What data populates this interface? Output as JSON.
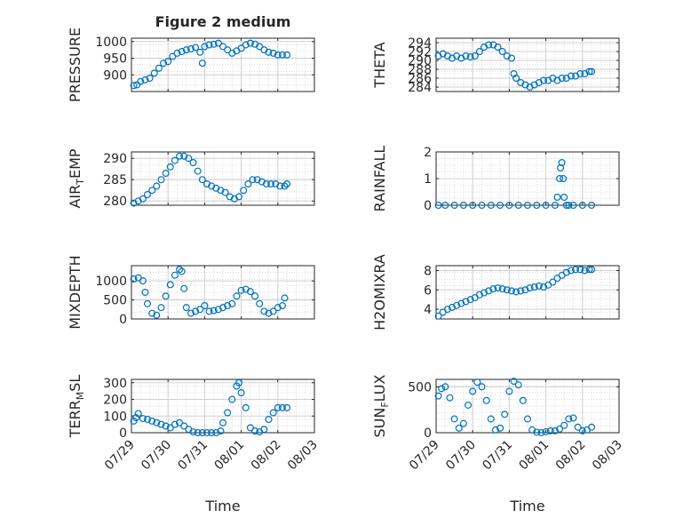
{
  "figure_title": "Figure 2 medium",
  "chart_data": [
    {
      "type": "scatter",
      "ylabel": "PRESSURE",
      "ylim": [
        850,
        1010
      ],
      "yticks": [
        900,
        950,
        1000
      ],
      "ytick_labels": [
        "900",
        "950",
        "1000"
      ],
      "x_ticks": [
        "07/29",
        "07/30",
        "07/31",
        "08/01",
        "08/02",
        "08/03"
      ],
      "xlim": [
        0,
        4
      ],
      "grid": true,
      "color": "#0072BD",
      "x": [
        0.05,
        0.12,
        0.2,
        0.3,
        0.4,
        0.5,
        0.6,
        0.7,
        0.8,
        0.9,
        1.0,
        1.1,
        1.2,
        1.3,
        1.4,
        1.5,
        1.55,
        1.6,
        1.7,
        1.8,
        1.9,
        2.0,
        2.1,
        2.2,
        2.3,
        2.4,
        2.5,
        2.6,
        2.7,
        2.8,
        2.9,
        3.0,
        3.1,
        3.2,
        3.3,
        3.4
      ],
      "y": [
        868,
        870,
        880,
        885,
        890,
        905,
        920,
        935,
        940,
        955,
        965,
        970,
        975,
        978,
        982,
        968,
        935,
        985,
        990,
        992,
        995,
        985,
        975,
        965,
        972,
        980,
        990,
        995,
        992,
        985,
        975,
        968,
        965,
        960,
        960,
        960
      ]
    },
    {
      "type": "scatter",
      "ylabel": "THETA",
      "ylim": [
        283,
        295
      ],
      "yticks": [
        284,
        286,
        288,
        290,
        292,
        294
      ],
      "ytick_labels": [
        "284",
        "286",
        "288",
        "290",
        "292",
        "294"
      ],
      "x_ticks": [
        "07/29",
        "07/30",
        "07/31",
        "08/01",
        "08/02",
        "08/03"
      ],
      "xlim": [
        0,
        4
      ],
      "grid": true,
      "color": "#0072BD",
      "x": [
        0.05,
        0.15,
        0.25,
        0.35,
        0.45,
        0.55,
        0.65,
        0.75,
        0.85,
        0.95,
        1.05,
        1.15,
        1.25,
        1.35,
        1.45,
        1.55,
        1.65,
        1.7,
        1.75,
        1.85,
        1.95,
        2.05,
        2.15,
        2.25,
        2.35,
        2.45,
        2.55,
        2.65,
        2.75,
        2.85,
        2.95,
        3.05,
        3.15,
        3.25,
        3.35,
        3.4
      ],
      "y": [
        291,
        291.5,
        291,
        290.5,
        291,
        290.5,
        291,
        290.8,
        291,
        292,
        293,
        293.5,
        293.5,
        293,
        292,
        291,
        290.5,
        287,
        286,
        285,
        284.5,
        284,
        284.5,
        285,
        285.5,
        285.5,
        286,
        285.5,
        286,
        286,
        286.5,
        286.5,
        287,
        287,
        287.5,
        287.5
      ]
    },
    {
      "type": "scatter",
      "ylabel": "AIR_TEMP",
      "ylim": [
        279,
        291.5
      ],
      "yticks": [
        280,
        285,
        290
      ],
      "ytick_labels": [
        "280",
        "285",
        "290"
      ],
      "x_ticks": [
        "07/29",
        "07/30",
        "07/31",
        "08/01",
        "08/02",
        "08/03"
      ],
      "xlim": [
        0,
        4
      ],
      "grid": true,
      "color": "#0072BD",
      "x": [
        0.05,
        0.15,
        0.25,
        0.35,
        0.45,
        0.55,
        0.65,
        0.75,
        0.85,
        0.95,
        1.05,
        1.15,
        1.25,
        1.35,
        1.45,
        1.55,
        1.65,
        1.75,
        1.85,
        1.95,
        2.05,
        2.15,
        2.25,
        2.35,
        2.45,
        2.55,
        2.65,
        2.75,
        2.85,
        2.95,
        3.05,
        3.15,
        3.25,
        3.35,
        3.4
      ],
      "y": [
        279.5,
        280,
        280.5,
        281.5,
        282.5,
        283.5,
        285,
        286.5,
        288,
        289.5,
        290.5,
        290.5,
        290,
        289,
        287,
        285,
        284,
        283.5,
        283,
        282.5,
        282,
        281,
        280.5,
        281,
        282.5,
        284,
        285,
        285,
        284.5,
        284,
        284,
        284,
        283.5,
        283.5,
        284
      ]
    },
    {
      "type": "scatter",
      "ylabel": "RAINFALL",
      "ylim": [
        0,
        2
      ],
      "yticks": [
        0,
        1,
        2
      ],
      "ytick_labels": [
        "0",
        "1",
        "2"
      ],
      "x_ticks": [
        "07/29",
        "07/30",
        "07/31",
        "08/01",
        "08/02",
        "08/03"
      ],
      "xlim": [
        0,
        4
      ],
      "grid": true,
      "color": "#0072BD",
      "x": [
        0.05,
        0.2,
        0.4,
        0.6,
        0.8,
        1.0,
        1.2,
        1.4,
        1.6,
        1.8,
        2.0,
        2.2,
        2.4,
        2.6,
        2.65,
        2.7,
        2.72,
        2.75,
        2.78,
        2.8,
        2.85,
        2.9,
        3.0,
        3.2,
        3.4
      ],
      "y": [
        0,
        0,
        0,
        0,
        0,
        0,
        0,
        0,
        0,
        0,
        0,
        0,
        0,
        0,
        0.3,
        1.0,
        1.4,
        1.6,
        1.0,
        0.3,
        0,
        0,
        0,
        0,
        0
      ]
    },
    {
      "type": "scatter",
      "ylabel": "MIXDEPTH",
      "ylim": [
        0,
        1400
      ],
      "yticks": [
        0,
        500,
        1000
      ],
      "ytick_labels": [
        "0",
        "500",
        "1000"
      ],
      "x_ticks": [
        "07/29",
        "07/30",
        "07/31",
        "08/01",
        "08/02",
        "08/03"
      ],
      "xlim": [
        0,
        4
      ],
      "grid": true,
      "color": "#0072BD",
      "x": [
        0.05,
        0.15,
        0.25,
        0.3,
        0.35,
        0.45,
        0.55,
        0.65,
        0.75,
        0.85,
        0.95,
        1.05,
        1.1,
        1.15,
        1.2,
        1.3,
        1.4,
        1.5,
        1.6,
        1.7,
        1.8,
        1.9,
        2.0,
        2.1,
        2.2,
        2.3,
        2.4,
        2.5,
        2.6,
        2.7,
        2.8,
        2.9,
        3.0,
        3.1,
        3.2,
        3.3,
        3.35
      ],
      "y": [
        1050,
        1080,
        1000,
        700,
        400,
        150,
        100,
        300,
        600,
        900,
        1150,
        1300,
        1250,
        800,
        300,
        150,
        200,
        250,
        350,
        200,
        220,
        250,
        300,
        350,
        400,
        600,
        750,
        780,
        720,
        600,
        400,
        200,
        150,
        200,
        300,
        350,
        550
      ]
    },
    {
      "type": "scatter",
      "ylabel": "H2OMIXRA",
      "ylim": [
        3,
        8.5
      ],
      "yticks": [
        4,
        6,
        8
      ],
      "ytick_labels": [
        "4",
        "6",
        "8"
      ],
      "x_ticks": [
        "07/29",
        "07/30",
        "07/31",
        "08/01",
        "08/02",
        "08/03"
      ],
      "xlim": [
        0,
        4
      ],
      "grid": true,
      "color": "#0072BD",
      "x": [
        0.05,
        0.15,
        0.25,
        0.35,
        0.45,
        0.55,
        0.65,
        0.75,
        0.85,
        0.95,
        1.05,
        1.15,
        1.25,
        1.35,
        1.45,
        1.55,
        1.65,
        1.75,
        1.85,
        1.95,
        2.05,
        2.15,
        2.25,
        2.35,
        2.45,
        2.55,
        2.65,
        2.75,
        2.85,
        2.95,
        3.05,
        3.15,
        3.25,
        3.35,
        3.4
      ],
      "y": [
        3.3,
        3.7,
        4.0,
        4.2,
        4.4,
        4.6,
        4.8,
        5.0,
        5.2,
        5.5,
        5.7,
        5.9,
        6.1,
        6.2,
        6.1,
        6.0,
        5.9,
        5.8,
        5.9,
        6.0,
        6.2,
        6.3,
        6.4,
        6.3,
        6.5,
        6.8,
        7.2,
        7.5,
        7.8,
        8.0,
        8.1,
        8.1,
        8.0,
        8.1,
        8.1
      ]
    },
    {
      "type": "scatter",
      "ylabel": "TERR_MSL",
      "ylim": [
        0,
        320
      ],
      "yticks": [
        0,
        100,
        200,
        300
      ],
      "ytick_labels": [
        "0",
        "100",
        "200",
        "300"
      ],
      "x_ticks": [
        "07/29",
        "07/30",
        "07/31",
        "08/01",
        "08/02",
        "08/03"
      ],
      "xlim": [
        0,
        4
      ],
      "grid": true,
      "color": "#0072BD",
      "x": [
        0.05,
        0.1,
        0.15,
        0.25,
        0.35,
        0.45,
        0.55,
        0.65,
        0.75,
        0.85,
        0.95,
        1.05,
        1.15,
        1.25,
        1.35,
        1.45,
        1.55,
        1.65,
        1.75,
        1.85,
        1.95,
        2.0,
        2.1,
        2.2,
        2.3,
        2.35,
        2.4,
        2.5,
        2.6,
        2.7,
        2.8,
        2.9,
        3.0,
        3.1,
        3.2,
        3.3,
        3.4
      ],
      "y": [
        70,
        90,
        115,
        85,
        80,
        70,
        60,
        50,
        40,
        30,
        50,
        60,
        40,
        20,
        5,
        0,
        0,
        0,
        0,
        0,
        10,
        60,
        120,
        200,
        280,
        300,
        240,
        150,
        30,
        10,
        5,
        20,
        80,
        120,
        150,
        150,
        150
      ]
    },
    {
      "type": "scatter",
      "ylabel": "SUN_FLUX",
      "ylim": [
        0,
        580
      ],
      "yticks": [
        0,
        500
      ],
      "ytick_labels": [
        "0",
        "500"
      ],
      "x_ticks": [
        "07/29",
        "07/30",
        "07/31",
        "08/01",
        "08/02",
        "08/03"
      ],
      "xlim": [
        0,
        4
      ],
      "grid": true,
      "color": "#0072BD",
      "x": [
        0.05,
        0.12,
        0.2,
        0.3,
        0.4,
        0.5,
        0.6,
        0.7,
        0.8,
        0.9,
        1.0,
        1.1,
        1.2,
        1.3,
        1.4,
        1.5,
        1.6,
        1.7,
        1.8,
        1.9,
        2.0,
        2.1,
        2.2,
        2.3,
        2.4,
        2.5,
        2.6,
        2.7,
        2.8,
        2.9,
        3.0,
        3.1,
        3.2,
        3.3,
        3.4
      ],
      "y": [
        400,
        480,
        500,
        380,
        150,
        50,
        100,
        300,
        450,
        550,
        500,
        350,
        150,
        30,
        50,
        200,
        450,
        560,
        520,
        350,
        150,
        30,
        5,
        0,
        10,
        20,
        20,
        40,
        80,
        150,
        160,
        60,
        20,
        30,
        60
      ]
    }
  ],
  "xlabels": [
    "Time",
    "Time"
  ]
}
